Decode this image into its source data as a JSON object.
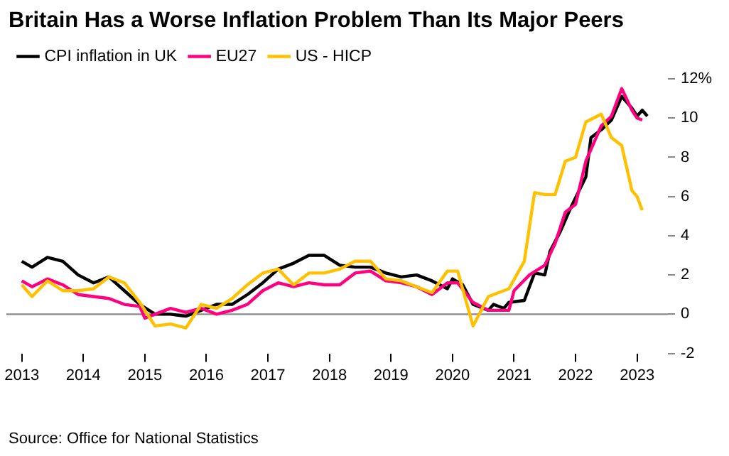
{
  "chart_data": {
    "type": "line",
    "title": "Britain Has a Worse Inflation Problem Than Its Major Peers",
    "xlim": [
      "2012-10",
      "2023-07"
    ],
    "xticks": [
      "2013",
      "2014",
      "2015",
      "2016",
      "2017",
      "2018",
      "2019",
      "2020",
      "2021",
      "2022",
      "2023"
    ],
    "ylim": [
      -2,
      12
    ],
    "yticks": [
      {
        "value": -2,
        "label": "-2"
      },
      {
        "value": 0,
        "label": "0"
      },
      {
        "value": 2,
        "label": "2"
      },
      {
        "value": 4,
        "label": "4"
      },
      {
        "value": 6,
        "label": "6"
      },
      {
        "value": 8,
        "label": "8"
      },
      {
        "value": 10,
        "label": "10"
      },
      {
        "value": 12,
        "label": "12%"
      }
    ],
    "grid": false,
    "legend": "top left",
    "marker": "none",
    "line_style": "solid",
    "ref_lines": [
      {
        "axis": "y",
        "value": 0,
        "color": "#888888"
      }
    ],
    "annotations": [
      "Source: Office for National Statistics"
    ],
    "series": [
      {
        "name": "CPI inflation in UK",
        "color": "#000000",
        "x": [
          "2013-01",
          "2013-03",
          "2013-06",
          "2013-09",
          "2013-12",
          "2014-03",
          "2014-06",
          "2014-09",
          "2014-12",
          "2015-03",
          "2015-06",
          "2015-09",
          "2015-12",
          "2016-03",
          "2016-06",
          "2016-09",
          "2016-12",
          "2017-03",
          "2017-06",
          "2017-09",
          "2017-12",
          "2018-03",
          "2018-06",
          "2018-09",
          "2018-12",
          "2019-03",
          "2019-06",
          "2019-09",
          "2019-12",
          "2020-01",
          "2020-03",
          "2020-05",
          "2020-08",
          "2020-09",
          "2020-11",
          "2020-12",
          "2021-03",
          "2021-05",
          "2021-07",
          "2021-08",
          "2021-10",
          "2021-12",
          "2022-03",
          "2022-04",
          "2022-06",
          "2022-08",
          "2022-10",
          "2022-12",
          "2023-01",
          "2023-02",
          "2023-03"
        ],
        "values": [
          2.7,
          2.4,
          2.9,
          2.7,
          2.0,
          1.6,
          1.9,
          1.2,
          0.5,
          0.0,
          0.0,
          -0.1,
          0.2,
          0.5,
          0.5,
          1.0,
          1.6,
          2.3,
          2.6,
          3.0,
          3.0,
          2.5,
          2.4,
          2.4,
          2.1,
          1.9,
          2.0,
          1.7,
          1.3,
          1.8,
          1.5,
          0.5,
          0.2,
          0.5,
          0.3,
          0.6,
          0.7,
          2.1,
          2.0,
          3.2,
          4.2,
          5.4,
          7.0,
          9.0,
          9.4,
          9.9,
          11.1,
          10.5,
          10.1,
          10.4,
          10.1
        ]
      },
      {
        "name": "EU27",
        "color": "#ff0080",
        "x": [
          "2013-01",
          "2013-03",
          "2013-06",
          "2013-09",
          "2013-12",
          "2014-03",
          "2014-06",
          "2014-09",
          "2014-12",
          "2015-01",
          "2015-06",
          "2015-09",
          "2015-12",
          "2016-03",
          "2016-06",
          "2016-09",
          "2016-12",
          "2017-03",
          "2017-06",
          "2017-09",
          "2017-12",
          "2018-03",
          "2018-06",
          "2018-09",
          "2018-12",
          "2019-03",
          "2019-06",
          "2019-09",
          "2019-12",
          "2020-02",
          "2020-05",
          "2020-08",
          "2020-12",
          "2021-01",
          "2021-04",
          "2021-07",
          "2021-09",
          "2021-11",
          "2022-01",
          "2022-03",
          "2022-06",
          "2022-08",
          "2022-10",
          "2022-12",
          "2023-01",
          "2023-02"
        ],
        "values": [
          1.7,
          1.4,
          1.8,
          1.5,
          1.0,
          0.9,
          0.8,
          0.5,
          0.4,
          -0.2,
          0.3,
          0.1,
          0.3,
          0.0,
          0.2,
          0.5,
          1.2,
          1.6,
          1.4,
          1.6,
          1.5,
          1.5,
          2.1,
          2.2,
          1.7,
          1.6,
          1.4,
          1.0,
          1.6,
          1.6,
          0.6,
          0.2,
          0.2,
          1.2,
          2.0,
          2.5,
          3.6,
          5.2,
          5.6,
          7.8,
          9.6,
          10.1,
          11.5,
          10.4,
          10.0,
          9.9
        ]
      },
      {
        "name": "US - HICP",
        "color": "#ffc000",
        "x": [
          "2013-01",
          "2013-03",
          "2013-06",
          "2013-09",
          "2013-12",
          "2014-03",
          "2014-06",
          "2014-09",
          "2014-12",
          "2015-03",
          "2015-06",
          "2015-09",
          "2015-12",
          "2016-03",
          "2016-06",
          "2016-09",
          "2016-12",
          "2017-03",
          "2017-06",
          "2017-09",
          "2017-12",
          "2018-03",
          "2018-06",
          "2018-09",
          "2018-12",
          "2019-03",
          "2019-06",
          "2019-09",
          "2019-12",
          "2020-02",
          "2020-05",
          "2020-08",
          "2020-12",
          "2021-03",
          "2021-05",
          "2021-07",
          "2021-09",
          "2021-11",
          "2022-01",
          "2022-03",
          "2022-06",
          "2022-08",
          "2022-10",
          "2022-12",
          "2023-01",
          "2023-02"
        ],
        "values": [
          1.5,
          0.9,
          1.7,
          1.2,
          1.2,
          1.3,
          1.9,
          1.6,
          0.6,
          -0.6,
          -0.5,
          -0.7,
          0.5,
          0.3,
          0.8,
          1.5,
          2.1,
          2.3,
          1.5,
          2.1,
          2.1,
          2.3,
          2.7,
          2.7,
          1.8,
          1.7,
          1.4,
          1.1,
          2.2,
          2.2,
          -0.6,
          0.9,
          1.3,
          2.7,
          6.2,
          6.1,
          6.1,
          7.8,
          8.0,
          9.8,
          10.2,
          9.0,
          8.6,
          6.3,
          6.0,
          5.3
        ]
      }
    ]
  }
}
